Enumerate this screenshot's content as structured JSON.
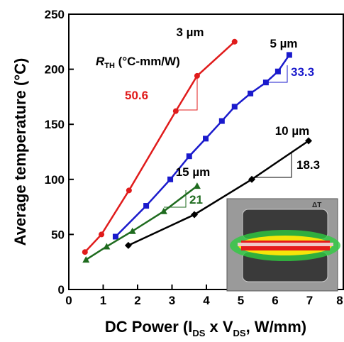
{
  "chart_data": {
    "type": "line",
    "xlabel": [
      "DC Power (I",
      "DS",
      " x V",
      "DS",
      ", W/mm)"
    ],
    "ylabel": "Average temperature (°C)",
    "xlim": [
      0,
      8
    ],
    "xticks": [
      0,
      1,
      2,
      3,
      4,
      5,
      6,
      7,
      8
    ],
    "ylim": [
      0,
      250
    ],
    "yticks": [
      0,
      50,
      100,
      150,
      200,
      250
    ],
    "rth_label": [
      "R",
      "TH",
      " (°C-mm/W)"
    ],
    "inset_label": "ΔT",
    "series": [
      {
        "name": "3 µm",
        "color": "#e01b1b",
        "marker": "circle",
        "slope_label": "50.6",
        "x": [
          0.47,
          0.95,
          1.75,
          3.11,
          3.73,
          4.82
        ],
        "values": [
          34,
          50,
          90,
          162,
          194,
          225
        ]
      },
      {
        "name": "5 µm",
        "color": "#1a1acc",
        "marker": "square",
        "slope_label": "33.3",
        "x": [
          1.36,
          2.25,
          2.95,
          3.5,
          3.98,
          4.45,
          4.82,
          5.28,
          5.73,
          6.08,
          6.41
        ],
        "values": [
          48,
          76,
          100,
          121,
          137,
          153,
          166,
          178,
          188,
          198,
          213
        ]
      },
      {
        "name": "10 µm",
        "color": "#000000",
        "marker": "diamond",
        "slope_label": "18.3",
        "x": [
          1.73,
          3.65,
          5.32,
          6.97
        ],
        "values": [
          40,
          68,
          100,
          135
        ]
      },
      {
        "name": "15 µm",
        "color": "#1e6b1e",
        "marker": "triangle",
        "slope_label": "21",
        "x": [
          0.5,
          1.1,
          1.85,
          2.76,
          3.73
        ],
        "values": [
          27,
          39,
          53,
          71,
          94
        ]
      }
    ]
  }
}
